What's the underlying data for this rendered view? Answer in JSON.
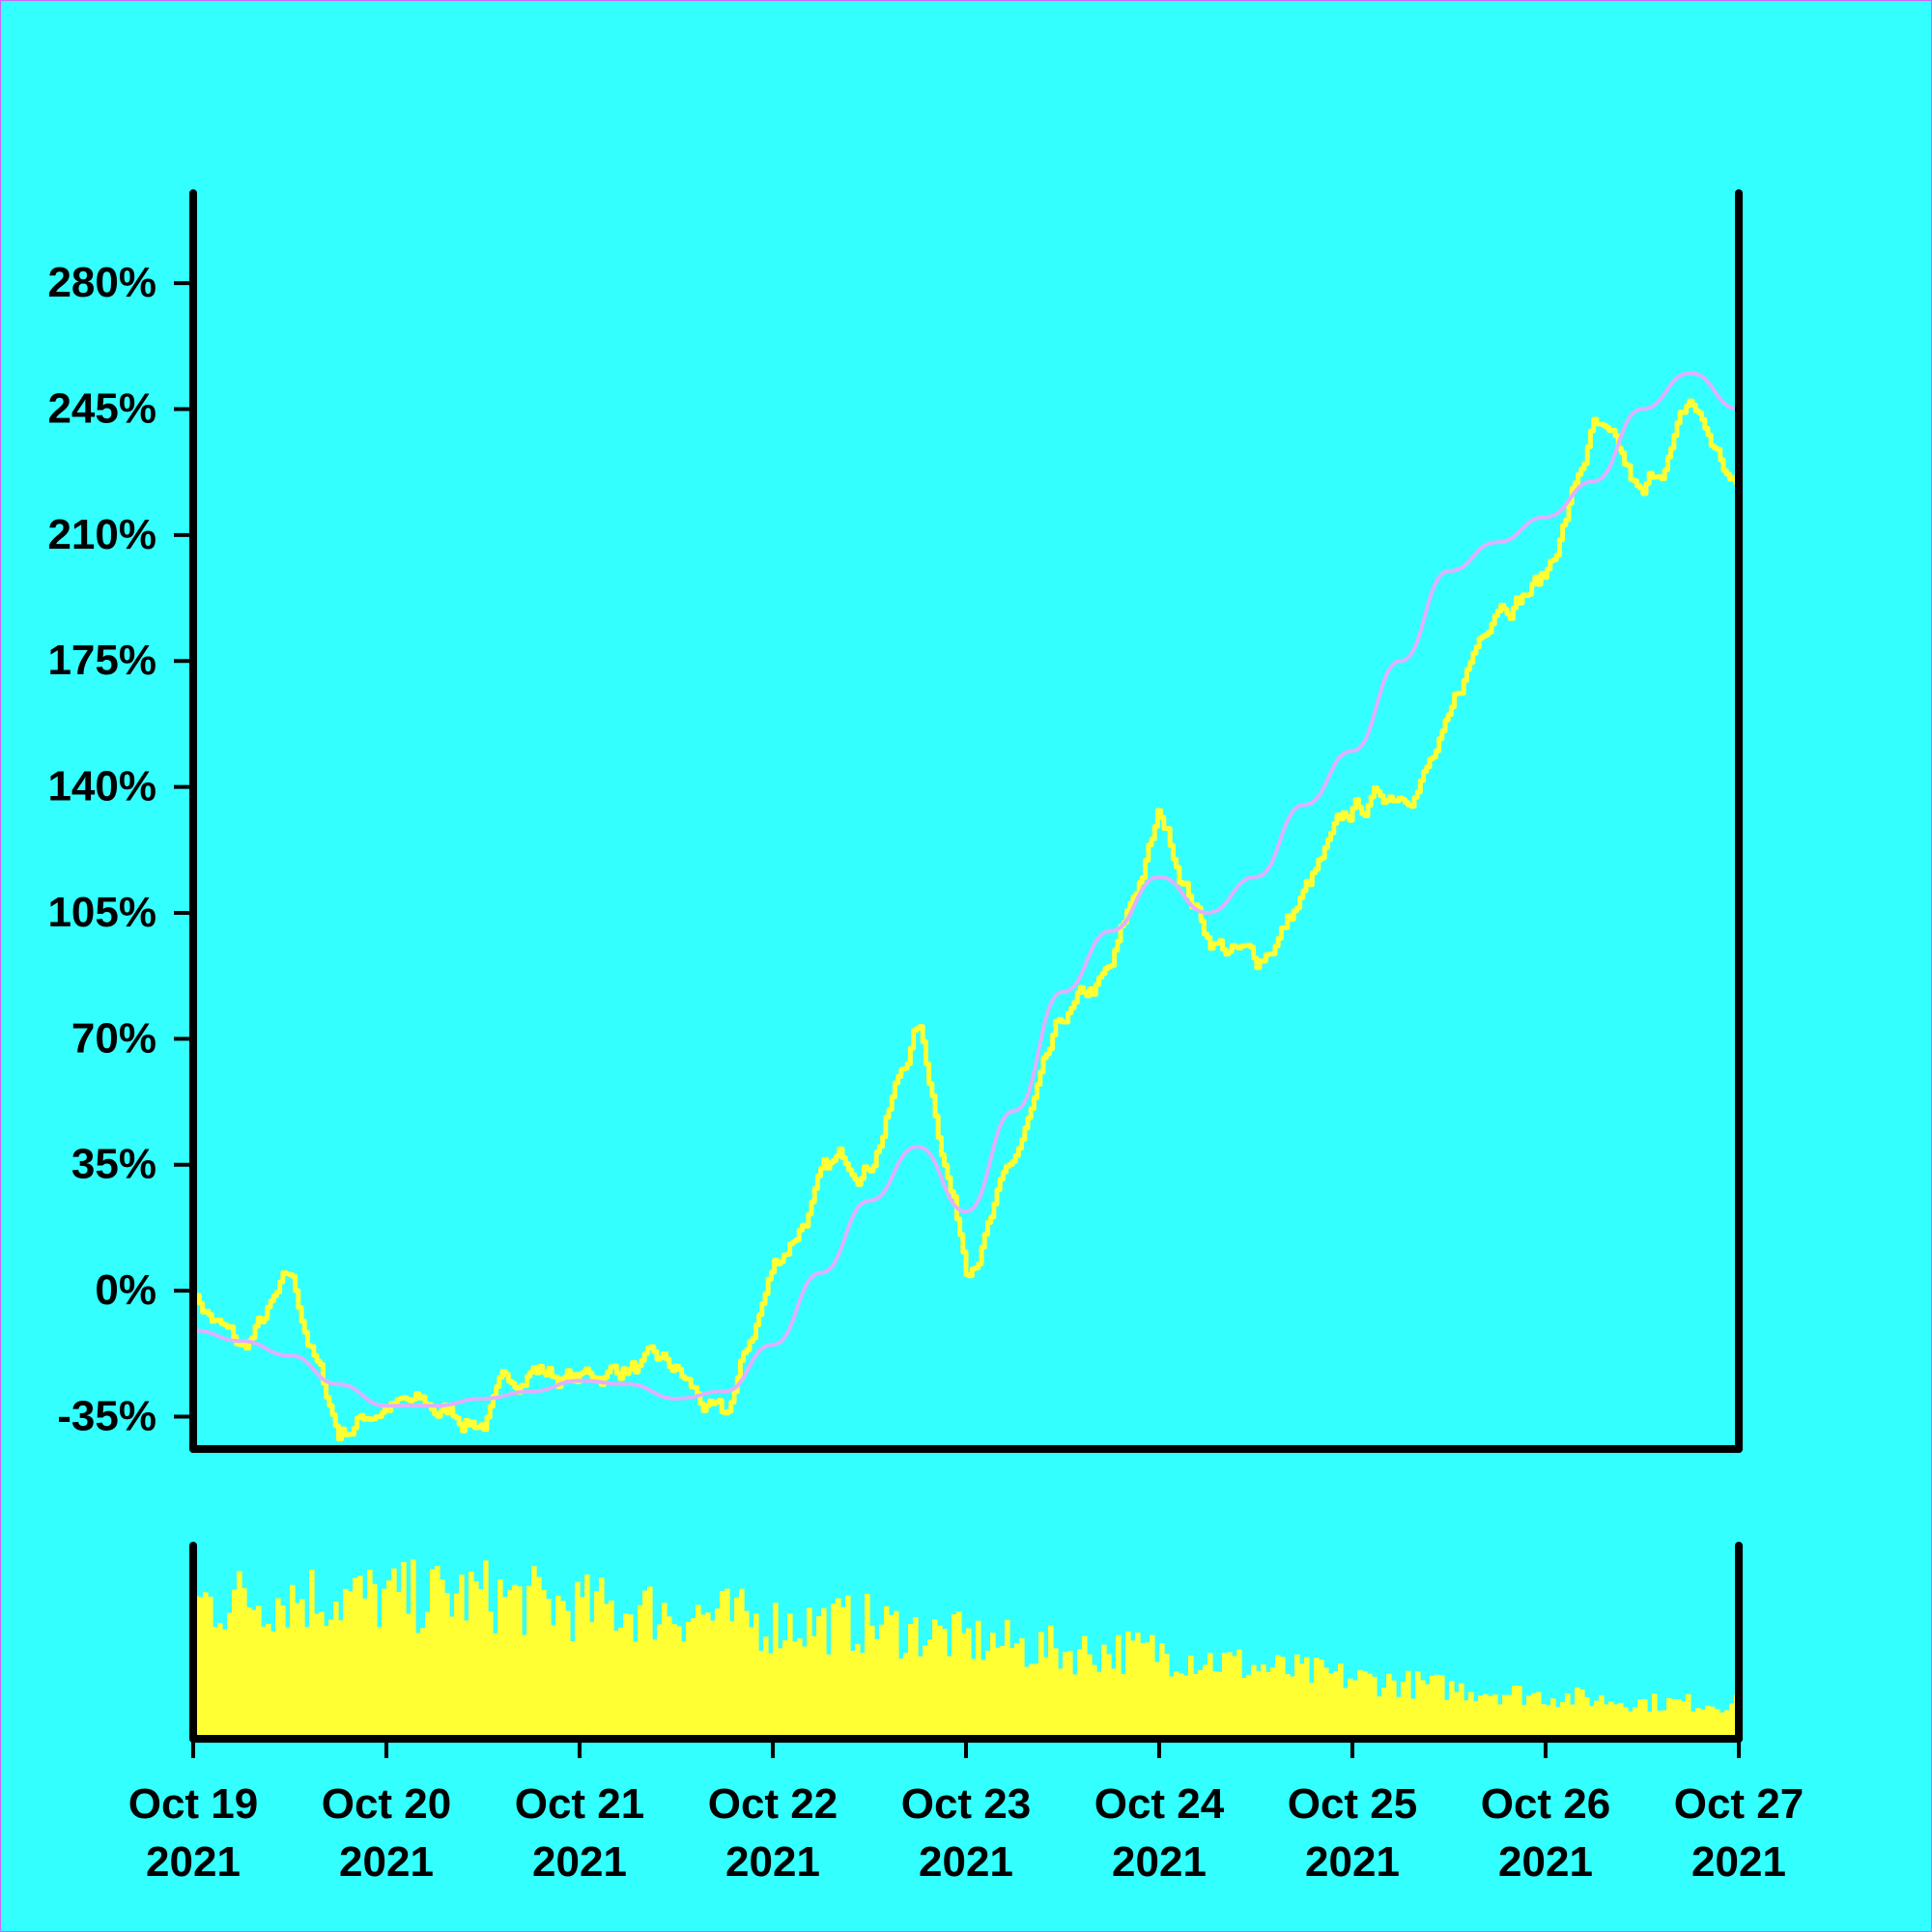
{
  "chart_data": {
    "type": "line",
    "title": "",
    "xlabel": "",
    "ylabel": "",
    "grid": false,
    "legend": "none",
    "colors": {
      "background": "#33ffff",
      "price_line": "#ffff33",
      "moving_average": "#e0b0ff",
      "volume_bars": "#ffff33",
      "axes": "#000000"
    },
    "x_range": [
      "2021-10-19",
      "2021-10-27"
    ],
    "x_ticks": [
      {
        "date": "2021-10-19",
        "line1": "Oct 19",
        "line2": "2021"
      },
      {
        "date": "2021-10-20",
        "line1": "Oct 20",
        "line2": "2021"
      },
      {
        "date": "2021-10-21",
        "line1": "Oct 21",
        "line2": "2021"
      },
      {
        "date": "2021-10-22",
        "line1": "Oct 22",
        "line2": "2021"
      },
      {
        "date": "2021-10-23",
        "line1": "Oct 23",
        "line2": "2021"
      },
      {
        "date": "2021-10-24",
        "line1": "Oct 24",
        "line2": "2021"
      },
      {
        "date": "2021-10-25",
        "line1": "Oct 25",
        "line2": "2021"
      },
      {
        "date": "2021-10-26",
        "line1": "Oct 26",
        "line2": "2021"
      },
      {
        "date": "2021-10-27",
        "line1": "Oct 27",
        "line2": "2021"
      }
    ],
    "y_range": [
      -44,
      305
    ],
    "y_ticks": [
      {
        "value": -35,
        "label": "-35%"
      },
      {
        "value": 0,
        "label": "0%"
      },
      {
        "value": 35,
        "label": "35%"
      },
      {
        "value": 70,
        "label": "70%"
      },
      {
        "value": 105,
        "label": "105%"
      },
      {
        "value": 140,
        "label": "140%"
      },
      {
        "value": 175,
        "label": "175%"
      },
      {
        "value": 210,
        "label": "210%"
      },
      {
        "value": 245,
        "label": "245%"
      },
      {
        "value": 280,
        "label": "280%"
      }
    ],
    "series": [
      {
        "key": "price",
        "x": [
          "2021-10-19 00:00",
          "2021-10-19 06:00",
          "2021-10-19 12:00",
          "2021-10-19 18:00",
          "2021-10-20 00:00",
          "2021-10-20 06:00",
          "2021-10-20 12:00",
          "2021-10-20 18:00",
          "2021-10-21 00:00",
          "2021-10-21 06:00",
          "2021-10-21 12:00",
          "2021-10-21 18:00",
          "2021-10-22 00:00",
          "2021-10-22 06:00",
          "2021-10-22 12:00",
          "2021-10-22 18:00",
          "2021-10-23 00:00",
          "2021-10-23 06:00",
          "2021-10-23 12:00",
          "2021-10-23 18:00",
          "2021-10-24 00:00",
          "2021-10-24 06:00",
          "2021-10-24 12:00",
          "2021-10-24 18:00",
          "2021-10-25 00:00",
          "2021-10-25 06:00",
          "2021-10-25 12:00",
          "2021-10-25 18:00",
          "2021-10-26 00:00",
          "2021-10-26 06:00",
          "2021-10-26 12:00",
          "2021-10-26 18:00",
          "2021-10-27 00:00"
        ],
        "values": [
          0,
          -18,
          0,
          -40,
          -30,
          -35,
          -35,
          -20,
          -25,
          -20,
          -25,
          -40,
          5,
          30,
          38,
          75,
          10,
          35,
          70,
          85,
          130,
          100,
          90,
          110,
          130,
          140,
          155,
          195,
          200,
          240,
          215,
          245,
          220
        ]
      },
      {
        "key": "moving_average",
        "x": [
          "2021-10-19 00:00",
          "2021-10-19 06:00",
          "2021-10-19 12:00",
          "2021-10-19 18:00",
          "2021-10-20 00:00",
          "2021-10-20 06:00",
          "2021-10-20 12:00",
          "2021-10-20 18:00",
          "2021-10-21 00:00",
          "2021-10-21 06:00",
          "2021-10-21 12:00",
          "2021-10-21 18:00",
          "2021-10-22 00:00",
          "2021-10-22 06:00",
          "2021-10-22 12:00",
          "2021-10-22 18:00",
          "2021-10-23 00:00",
          "2021-10-23 06:00",
          "2021-10-23 12:00",
          "2021-10-23 18:00",
          "2021-10-24 00:00",
          "2021-10-24 06:00",
          "2021-10-24 12:00",
          "2021-10-24 18:00",
          "2021-10-25 00:00",
          "2021-10-25 06:00",
          "2021-10-25 12:00",
          "2021-10-25 18:00",
          "2021-10-26 00:00",
          "2021-10-26 06:00",
          "2021-10-26 12:00",
          "2021-10-26 18:00",
          "2021-10-27 00:00"
        ],
        "values": [
          -11,
          -14,
          -18,
          -26,
          -32,
          -32,
          -30,
          -28,
          -25,
          -26,
          -30,
          -28,
          -15,
          5,
          25,
          40,
          22,
          50,
          83,
          100,
          115,
          105,
          115,
          135,
          150,
          175,
          200,
          208,
          215,
          225,
          245,
          255,
          245
        ]
      }
    ],
    "volume": {
      "x": [
        "2021-10-19",
        "2021-10-19 12:00",
        "2021-10-20",
        "2021-10-20 12:00",
        "2021-10-21",
        "2021-10-21 12:00",
        "2021-10-22",
        "2021-10-22 12:00",
        "2021-10-23",
        "2021-10-23 12:00",
        "2021-10-24",
        "2021-10-24 12:00",
        "2021-10-25",
        "2021-10-25 12:00",
        "2021-10-26",
        "2021-10-26 12:00",
        "2021-10-27"
      ],
      "relative_values": [
        0.85,
        0.9,
        0.88,
        0.9,
        0.82,
        0.8,
        0.72,
        0.72,
        0.62,
        0.55,
        0.55,
        0.45,
        0.38,
        0.32,
        0.27,
        0.23,
        0.22
      ]
    }
  }
}
